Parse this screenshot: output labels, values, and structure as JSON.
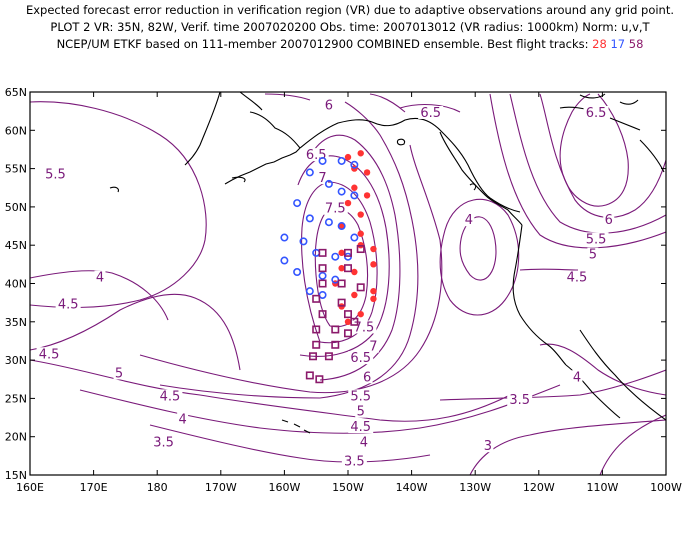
{
  "title": {
    "line1": "Expected forecast error reduction in verification region (VR) due to adaptive observations around any grid point.",
    "line2": "PLOT 2 VR: 35N, 82W, Verif. time 2007020200 Obs. time: 2007013012 (VR radius: 1000km) Norm: u,v,T",
    "line3_prefix": "NCEP/UM ETKF based on 111-member 2007012900 COMBINED ensemble.  Best flight tracks:",
    "track_a": "28",
    "track_b": "17",
    "track_c": "58"
  },
  "colors": {
    "contour": "#7a1a7a",
    "coast": "#000000",
    "track_a": "#ff3333",
    "track_b": "#3355ff",
    "track_c": "#8b1a6b"
  },
  "axes": {
    "lat_labels": [
      "15N",
      "20N",
      "25N",
      "30N",
      "35N",
      "40N",
      "45N",
      "50N",
      "55N",
      "60N",
      "65N"
    ],
    "lat_values": [
      15,
      20,
      25,
      30,
      35,
      40,
      45,
      50,
      55,
      60,
      65
    ],
    "lon_labels": [
      "160E",
      "170E",
      "180",
      "170W",
      "160W",
      "150W",
      "140W",
      "130W",
      "120W",
      "110W",
      "100W"
    ],
    "lon_values": [
      160,
      170,
      180,
      190,
      200,
      210,
      220,
      230,
      240,
      250,
      260
    ]
  },
  "contour_labels": [
    {
      "text": "6",
      "lon": 207,
      "lat": 63
    },
    {
      "text": "6.5",
      "lon": 223,
      "lat": 62
    },
    {
      "text": "6.5",
      "lon": 249,
      "lat": 62
    },
    {
      "text": "5.5",
      "lon": 164,
      "lat": 54
    },
    {
      "text": "6.5",
      "lon": 205,
      "lat": 56.5
    },
    {
      "text": "7",
      "lon": 206,
      "lat": 53.5
    },
    {
      "text": "7.5",
      "lon": 208,
      "lat": 49.5
    },
    {
      "text": "4",
      "lon": 229,
      "lat": 48
    },
    {
      "text": "6",
      "lon": 251,
      "lat": 48
    },
    {
      "text": "5.5",
      "lon": 249,
      "lat": 45.5
    },
    {
      "text": "5",
      "lon": 248.5,
      "lat": 43.5
    },
    {
      "text": "4.5",
      "lon": 246,
      "lat": 40.5
    },
    {
      "text": "4",
      "lon": 171,
      "lat": 40.5
    },
    {
      "text": "4.5",
      "lon": 166,
      "lat": 37
    },
    {
      "text": "7.5",
      "lon": 212.5,
      "lat": 34
    },
    {
      "text": "7",
      "lon": 214,
      "lat": 31.5
    },
    {
      "text": "4.5",
      "lon": 163,
      "lat": 30.5
    },
    {
      "text": "6.5",
      "lon": 212,
      "lat": 30
    },
    {
      "text": "6",
      "lon": 213,
      "lat": 27.5
    },
    {
      "text": "5",
      "lon": 174,
      "lat": 28
    },
    {
      "text": "5.5",
      "lon": 212,
      "lat": 25
    },
    {
      "text": "4",
      "lon": 246,
      "lat": 27.5
    },
    {
      "text": "4.5",
      "lon": 182,
      "lat": 25
    },
    {
      "text": "5",
      "lon": 212,
      "lat": 23
    },
    {
      "text": "3.5",
      "lon": 237,
      "lat": 24.5
    },
    {
      "text": "4",
      "lon": 184,
      "lat": 22
    },
    {
      "text": "4.5",
      "lon": 212,
      "lat": 21
    },
    {
      "text": "3.5",
      "lon": 181,
      "lat": 19
    },
    {
      "text": "4",
      "lon": 212.5,
      "lat": 19
    },
    {
      "text": "3",
      "lon": 232,
      "lat": 18.5
    },
    {
      "text": "3.5",
      "lon": 211,
      "lat": 16.5
    }
  ],
  "tracks": {
    "red": [
      [
        210,
        56.5
      ],
      [
        212,
        57
      ],
      [
        211,
        55
      ],
      [
        213,
        54.5
      ],
      [
        211,
        52.5
      ],
      [
        213,
        51.5
      ],
      [
        210,
        50.5
      ],
      [
        212,
        49
      ],
      [
        209,
        47.5
      ],
      [
        212,
        46.5
      ],
      [
        209,
        44
      ],
      [
        212,
        45
      ],
      [
        214,
        44.5
      ],
      [
        209,
        42
      ],
      [
        211,
        41.5
      ],
      [
        214,
        42.5
      ],
      [
        208,
        40
      ],
      [
        211,
        38.5
      ],
      [
        214,
        39
      ],
      [
        209,
        37
      ],
      [
        212,
        36
      ],
      [
        214,
        38
      ],
      [
        210,
        35
      ]
    ],
    "blue": [
      [
        206,
        56
      ],
      [
        209,
        56
      ],
      [
        211,
        55.5
      ],
      [
        204,
        54.5
      ],
      [
        207,
        53
      ],
      [
        209,
        52
      ],
      [
        211,
        51.5
      ],
      [
        202,
        50.5
      ],
      [
        204,
        48.5
      ],
      [
        207,
        48
      ],
      [
        209,
        47.5
      ],
      [
        211,
        46
      ],
      [
        200,
        46
      ],
      [
        203,
        45.5
      ],
      [
        205,
        44
      ],
      [
        208,
        43.5
      ],
      [
        210,
        43.5
      ],
      [
        200,
        43
      ],
      [
        202,
        41.5
      ],
      [
        206,
        41
      ],
      [
        208,
        40.5
      ],
      [
        204,
        39
      ],
      [
        206,
        38.5
      ]
    ],
    "purple": [
      [
        206,
        44
      ],
      [
        210,
        44
      ],
      [
        212,
        44.5
      ],
      [
        206,
        42
      ],
      [
        210,
        42
      ],
      [
        206,
        40
      ],
      [
        209,
        40
      ],
      [
        212,
        39.5
      ],
      [
        205,
        38
      ],
      [
        209,
        37.5
      ],
      [
        206,
        36
      ],
      [
        210,
        36
      ],
      [
        211,
        35
      ],
      [
        205,
        34
      ],
      [
        208,
        34
      ],
      [
        210,
        33.5
      ],
      [
        205,
        32
      ],
      [
        208,
        32
      ],
      [
        204.5,
        30.5
      ],
      [
        207,
        30.5
      ],
      [
        204,
        28
      ],
      [
        205.5,
        27.5
      ]
    ]
  }
}
